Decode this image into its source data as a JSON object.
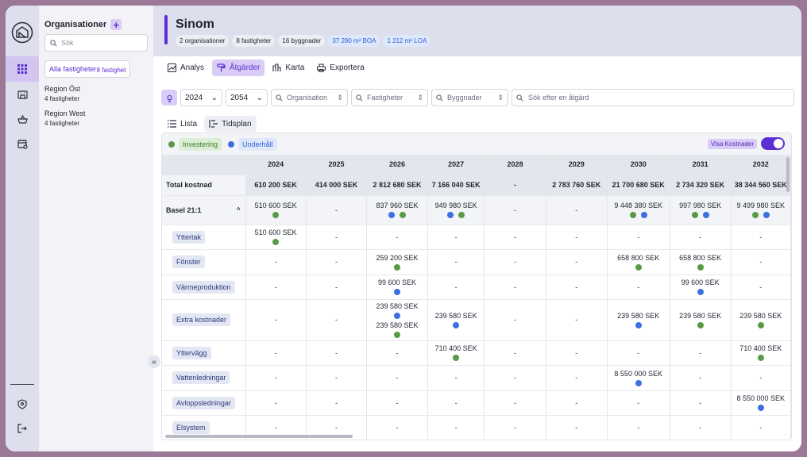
{
  "sidebar": {
    "title": "Organisationer",
    "add_label": "+",
    "search_placeholder": "Sök",
    "items": [
      {
        "name": "Alla fastigheter",
        "count": "8 fastighet"
      },
      {
        "name": "Region Öst",
        "count": "4 fastigheter"
      },
      {
        "name": "Region West",
        "count": "4 fastigheter"
      }
    ]
  },
  "header": {
    "title": "Sinom",
    "badges": [
      "2 organisationer",
      "8 fastigheter",
      "16 byggnader",
      "37 280 m² BOA",
      "1 212 m² LOA"
    ]
  },
  "tabs": [
    "Analys",
    "Åtgärder",
    "Karta",
    "Exportera"
  ],
  "filters": {
    "year_from": "2024",
    "year_to": "2054",
    "organisation": "Organisation",
    "fastigheter": "Fastigheter",
    "byggnader": "Byggnader",
    "search_placeholder": "Sök efter en åtgärd"
  },
  "view_tabs": [
    "Lista",
    "Tidsplan"
  ],
  "legend": {
    "investering": "Investering",
    "underhall": "Underhåll"
  },
  "visa_kostnader": "Visa Kostnader",
  "colors": {
    "accent": "#5b2fd3",
    "investering": "#5a9a46",
    "underhall": "#3c6fe0"
  },
  "table": {
    "years": [
      "2024",
      "2025",
      "2026",
      "2027",
      "2028",
      "2029",
      "2030",
      "2031",
      "2032"
    ],
    "total_label": "Total kostnad",
    "totals": [
      "610 200 SEK",
      "414 000 SEK",
      "2 812 680 SEK",
      "7 166 040 SEK",
      "-",
      "2 783 760 SEK",
      "21 700 680 SEK",
      "2 734 320 SEK",
      "38 344 560 SEK"
    ],
    "group": {
      "name": "Basel 21:1",
      "cells": [
        {
          "v": [
            "510 600 SEK"
          ],
          "dots": [
            "g"
          ]
        },
        {
          "v": [
            "-"
          ],
          "dots": []
        },
        {
          "v": [
            "837 960 SEK"
          ],
          "dots": [
            "b",
            "g"
          ]
        },
        {
          "v": [
            "949 980 SEK"
          ],
          "dots": [
            "b",
            "g"
          ]
        },
        {
          "v": [
            "-"
          ],
          "dots": []
        },
        {
          "v": [
            "-"
          ],
          "dots": []
        },
        {
          "v": [
            "9 448 380 SEK"
          ],
          "dots": [
            "g",
            "b"
          ]
        },
        {
          "v": [
            "997 980 SEK"
          ],
          "dots": [
            "g",
            "b"
          ]
        },
        {
          "v": [
            "9 499 980 SEK"
          ],
          "dots": [
            "g",
            "b"
          ]
        }
      ]
    },
    "rows": [
      {
        "label": "Yttertak",
        "cells": [
          {
            "v": [
              "510 600 SEK"
            ],
            "dots": [
              "g"
            ]
          },
          {
            "v": [
              "-"
            ]
          },
          {
            "v": [
              "-"
            ]
          },
          {
            "v": [
              "-"
            ]
          },
          {
            "v": [
              "-"
            ]
          },
          {
            "v": [
              "-"
            ]
          },
          {
            "v": [
              "-"
            ]
          },
          {
            "v": [
              "-"
            ]
          },
          {
            "v": [
              "-"
            ]
          }
        ]
      },
      {
        "label": "Fönster",
        "cells": [
          {
            "v": [
              "-"
            ]
          },
          {
            "v": [
              "-"
            ]
          },
          {
            "v": [
              "259 200 SEK"
            ],
            "dots": [
              "g"
            ]
          },
          {
            "v": [
              "-"
            ]
          },
          {
            "v": [
              "-"
            ]
          },
          {
            "v": [
              "-"
            ]
          },
          {
            "v": [
              "658 800 SEK"
            ],
            "dots": [
              "g"
            ]
          },
          {
            "v": [
              "658 800 SEK"
            ],
            "dots": [
              "g"
            ]
          },
          {
            "v": [
              "-"
            ]
          }
        ]
      },
      {
        "label": "Värmeproduktion",
        "cells": [
          {
            "v": [
              "-"
            ]
          },
          {
            "v": [
              "-"
            ]
          },
          {
            "v": [
              "99 600 SEK"
            ],
            "dots": [
              "b"
            ]
          },
          {
            "v": [
              "-"
            ]
          },
          {
            "v": [
              "-"
            ]
          },
          {
            "v": [
              "-"
            ]
          },
          {
            "v": [
              "-"
            ]
          },
          {
            "v": [
              "99 600 SEK"
            ],
            "dots": [
              "b"
            ]
          },
          {
            "v": [
              "-"
            ]
          }
        ]
      },
      {
        "label": "Extra kostnader",
        "tall": true,
        "cells": [
          {
            "v": [
              "-"
            ]
          },
          {
            "v": [
              "-"
            ]
          },
          {
            "v": [
              "239 580 SEK",
              "239 580 SEK"
            ],
            "dots": [
              "b",
              "g"
            ],
            "stack": true
          },
          {
            "v": [
              "239 580 SEK"
            ],
            "dots": [
              "b"
            ]
          },
          {
            "v": [
              "-"
            ]
          },
          {
            "v": [
              "-"
            ]
          },
          {
            "v": [
              "239 580 SEK"
            ],
            "dots": [
              "b"
            ]
          },
          {
            "v": [
              "239 580 SEK"
            ],
            "dots": [
              "g"
            ]
          },
          {
            "v": [
              "239 580 SEK"
            ],
            "dots": [
              "g"
            ]
          }
        ]
      },
      {
        "label": "Yttervägg",
        "cells": [
          {
            "v": [
              "-"
            ]
          },
          {
            "v": [
              "-"
            ]
          },
          {
            "v": [
              "-"
            ]
          },
          {
            "v": [
              "710 400 SEK"
            ],
            "dots": [
              "g"
            ]
          },
          {
            "v": [
              "-"
            ]
          },
          {
            "v": [
              "-"
            ]
          },
          {
            "v": [
              "-"
            ]
          },
          {
            "v": [
              "-"
            ]
          },
          {
            "v": [
              "710 400 SEK"
            ],
            "dots": [
              "g"
            ]
          }
        ]
      },
      {
        "label": "Vattenledningar",
        "cells": [
          {
            "v": [
              "-"
            ]
          },
          {
            "v": [
              "-"
            ]
          },
          {
            "v": [
              "-"
            ]
          },
          {
            "v": [
              "-"
            ]
          },
          {
            "v": [
              "-"
            ]
          },
          {
            "v": [
              "-"
            ]
          },
          {
            "v": [
              "8 550 000 SEK"
            ],
            "dots": [
              "b"
            ]
          },
          {
            "v": [
              "-"
            ]
          },
          {
            "v": [
              "-"
            ]
          }
        ]
      },
      {
        "label": "Avloppsledningar",
        "cells": [
          {
            "v": [
              "-"
            ]
          },
          {
            "v": [
              "-"
            ]
          },
          {
            "v": [
              "-"
            ]
          },
          {
            "v": [
              "-"
            ]
          },
          {
            "v": [
              "-"
            ]
          },
          {
            "v": [
              "-"
            ]
          },
          {
            "v": [
              "-"
            ]
          },
          {
            "v": [
              "-"
            ]
          },
          {
            "v": [
              "8 550 000 SEK"
            ],
            "dots": [
              "b"
            ]
          }
        ]
      },
      {
        "label": "Elsystem",
        "cells": [
          {
            "v": [
              "-"
            ]
          },
          {
            "v": [
              "-"
            ]
          },
          {
            "v": [
              "-"
            ]
          },
          {
            "v": [
              "-"
            ]
          },
          {
            "v": [
              "-"
            ]
          },
          {
            "v": [
              "-"
            ]
          },
          {
            "v": [
              "-"
            ]
          },
          {
            "v": [
              "-"
            ]
          },
          {
            "v": [
              "-"
            ]
          }
        ]
      }
    ]
  }
}
